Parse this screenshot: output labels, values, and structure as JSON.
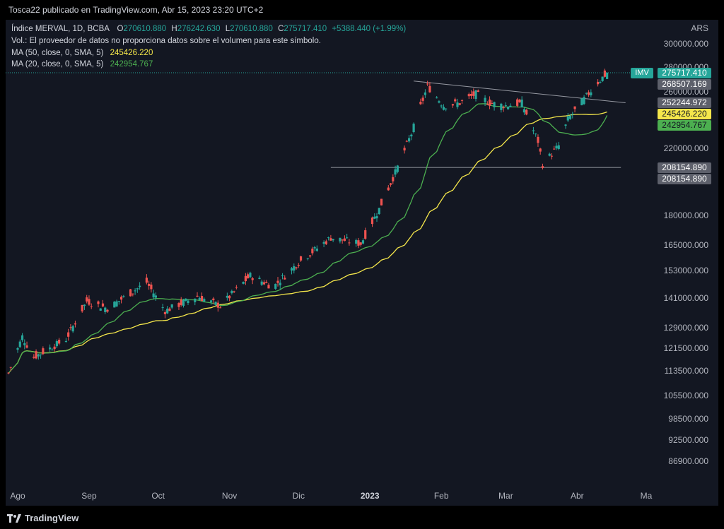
{
  "header": {
    "publisher_text": "Tosca22 publicado en TradingView.com, Abr 15, 2023 23:20 UTC+2"
  },
  "legend": {
    "symbol": "Índice MERVAL, 1D, BCBA",
    "o_label": "O",
    "o_value": "270610.880",
    "h_label": "H",
    "h_value": "276242.630",
    "l_label": "L",
    "l_value": "270610.880",
    "c_label": "C",
    "c_value": "275717.410",
    "change": "+5388.440 (+1.99%)",
    "volume_note": "Vol.: El proveedor de datos no proporciona datos sobre el volumen para este símbolo.",
    "ma50_label": "MA (50, close, 0, SMA, 5)",
    "ma50_value": "245426.220",
    "ma20_label": "MA (20, close, 0, SMA, 5)",
    "ma20_value": "242954.767"
  },
  "colors": {
    "up": "#26a69a",
    "down": "#ef5350",
    "ma50": "#f5e74b",
    "ma20": "#4caf50",
    "background": "#131722",
    "trendline": "#9598a1"
  },
  "footer": {
    "logo_text": "TradingView"
  },
  "chart_data": {
    "type": "candlestick",
    "currency": "ARS",
    "scale": "log",
    "ylim": [
      84000,
      303000
    ],
    "y_ticks": [
      "300000.000",
      "280000.000",
      "260000.000",
      "220000.000",
      "180000.000",
      "165000.000",
      "153000.000",
      "141000.000",
      "129000.000",
      "121500.000",
      "113500.000",
      "105500.000",
      "98500.000",
      "92500.000",
      "86900.000"
    ],
    "x_ticks": [
      "Ago",
      "Sep",
      "Oct",
      "Nov",
      "Dic",
      "2023",
      "Feb",
      "Mar",
      "Abr",
      "Ma"
    ],
    "x_tick_bold": "2023",
    "price_tags": [
      {
        "label": "IMV",
        "value": "275717.410",
        "kind": "last"
      },
      {
        "value": "268507.169",
        "kind": "gray"
      },
      {
        "value": "252244.972",
        "kind": "gray"
      },
      {
        "value": "245426.220",
        "kind": "ma50"
      },
      {
        "value": "242954.767",
        "kind": "ma20"
      },
      {
        "value": "208154.890",
        "kind": "gray"
      },
      {
        "value": "208154.890",
        "kind": "gray"
      }
    ],
    "approx_close_path": [
      {
        "date": "2022-07-28",
        "close": 113000
      },
      {
        "date": "2022-08-03",
        "close": 126000
      },
      {
        "date": "2022-08-08",
        "close": 118500
      },
      {
        "date": "2022-08-22",
        "close": 125000
      },
      {
        "date": "2022-08-31",
        "close": 140000
      },
      {
        "date": "2022-09-09",
        "close": 137000
      },
      {
        "date": "2022-09-26",
        "close": 148000
      },
      {
        "date": "2022-10-04",
        "close": 136000
      },
      {
        "date": "2022-10-18",
        "close": 142000
      },
      {
        "date": "2022-10-28",
        "close": 138000
      },
      {
        "date": "2022-11-10",
        "close": 151000
      },
      {
        "date": "2022-11-20",
        "close": 146000
      },
      {
        "date": "2022-12-01",
        "close": 157000
      },
      {
        "date": "2022-12-15",
        "close": 169000
      },
      {
        "date": "2022-12-28",
        "close": 166000
      },
      {
        "date": "2023-01-05",
        "close": 184000
      },
      {
        "date": "2023-01-12",
        "close": 205000
      },
      {
        "date": "2023-01-19",
        "close": 230000
      },
      {
        "date": "2023-01-26",
        "close": 265000
      },
      {
        "date": "2023-02-02",
        "close": 250000
      },
      {
        "date": "2023-02-09",
        "close": 252000
      },
      {
        "date": "2023-02-16",
        "close": 259000
      },
      {
        "date": "2023-02-22",
        "close": 252000
      },
      {
        "date": "2023-03-01",
        "close": 250000
      },
      {
        "date": "2023-03-08",
        "close": 252000
      },
      {
        "date": "2023-03-15",
        "close": 225000
      },
      {
        "date": "2023-03-17",
        "close": 210000
      },
      {
        "date": "2023-03-24",
        "close": 222000
      },
      {
        "date": "2023-03-28",
        "close": 240000
      },
      {
        "date": "2023-04-04",
        "close": 255000
      },
      {
        "date": "2023-04-10",
        "close": 268000
      },
      {
        "date": "2023-04-14",
        "close": 275717.41
      }
    ],
    "trendlines": [
      {
        "from": {
          "date": "2023-01-20",
          "price": 269000
        },
        "to": {
          "date": "2023-04-22",
          "price": 252244.972
        }
      },
      {
        "from": {
          "date": "2022-12-15",
          "price": 208154.89
        },
        "to": {
          "date": "2023-04-20",
          "price": 208154.89
        }
      }
    ]
  }
}
